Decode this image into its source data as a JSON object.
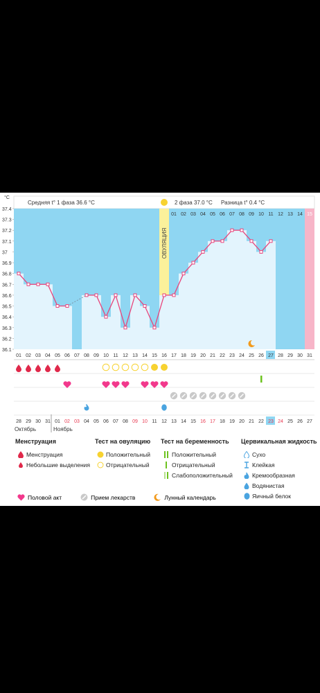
{
  "chart_data": {
    "type": "line",
    "unit": "°C",
    "ylim": [
      36.1,
      37.4
    ],
    "y_ticks": [
      "37.4",
      "37.3",
      "37.2",
      "37.1",
      "37",
      "36.9",
      "36.8",
      "36.7",
      "36.6",
      "36.5",
      "36.4",
      "36.3",
      "36.2",
      "36.1"
    ],
    "cycle_days": [
      "01",
      "02",
      "03",
      "04",
      "05",
      "06",
      "07",
      "08",
      "09",
      "10",
      "11",
      "12",
      "13",
      "14",
      "15",
      "16",
      "17",
      "18",
      "19",
      "20",
      "21",
      "22",
      "23",
      "24",
      "25",
      "26",
      "27",
      "28",
      "29",
      "30",
      "31"
    ],
    "phase2_days": [
      "01",
      "02",
      "03",
      "04",
      "05",
      "06",
      "07",
      "08",
      "09",
      "10",
      "11",
      "12",
      "13",
      "14",
      "15"
    ],
    "temperatures": [
      36.8,
      36.7,
      36.7,
      36.7,
      36.5,
      36.5,
      null,
      36.6,
      36.6,
      36.4,
      36.6,
      36.3,
      36.6,
      36.5,
      36.3,
      36.6,
      36.6,
      36.8,
      36.9,
      37.0,
      37.1,
      37.1,
      37.2,
      37.2,
      37.1,
      37.0,
      37.1,
      null,
      null,
      null,
      null
    ],
    "ovulation_day_index": 15,
    "current_day_index": 26,
    "calendar_dates": [
      "28",
      "29",
      "30",
      "31",
      "01",
      "02",
      "03",
      "04",
      "05",
      "06",
      "07",
      "08",
      "09",
      "10",
      "11",
      "12",
      "13",
      "14",
      "15",
      "16",
      "17",
      "18",
      "19",
      "20",
      "21",
      "22",
      "23",
      "24",
      "25",
      "26",
      "27"
    ],
    "weekend_indices": [
      5,
      6,
      12,
      13,
      19,
      20,
      26,
      27
    ],
    "today_date_index": 26,
    "months": [
      "Октябрь",
      "Ноябрь"
    ],
    "menstruation_days": [
      0,
      1,
      2,
      3,
      4
    ],
    "ovulation_positive_days": [
      14,
      15
    ],
    "ovulation_negative_days": [
      9,
      10,
      11,
      12,
      13
    ],
    "pregnancy_negative_days": [
      25
    ],
    "intercourse_days": [
      5,
      9,
      10,
      11,
      13,
      14,
      15
    ],
    "medicine_days": [
      16,
      17,
      18,
      19,
      20,
      21,
      22,
      23
    ],
    "fluid_creamy_days": [
      7
    ],
    "fluid_eggwhite_days": [
      15
    ],
    "lunar_day": 24
  },
  "header": {
    "avg1": "Средняя t° 1 фаза 36.6 °C",
    "avg2": "2 фаза 37.0 °C",
    "diff": "Разница t° 0.4 °C",
    "ovulation_label": "ОВУЛЯЦИЯ"
  },
  "legend": {
    "menstruation": {
      "title": "Менструация",
      "items": [
        "Менструация",
        "Небольшие выделения"
      ]
    },
    "ovulation_test": {
      "title": "Тест на овуляцию",
      "items": [
        "Положительный",
        "Отрицательный"
      ]
    },
    "pregnancy_test": {
      "title": "Тест на беременность",
      "items": [
        "Положительный",
        "Отрицательный",
        "Слабоположительный"
      ]
    },
    "cervical": {
      "title": "Цервикальная жидкость",
      "items": [
        "Сухо",
        "Клейкая",
        "Кремообразная",
        "Водянистая",
        "Яичный белок"
      ]
    },
    "bottom": [
      "Половой акт",
      "Прием лекарств",
      "Лунный календарь"
    ]
  },
  "colors": {
    "phase1": "#8fd6f2",
    "phase2": "#8fd6f2",
    "column": "#e3f4fd",
    "ovulation": "#fbf19b",
    "period": "#f7b5c8",
    "line": "#e8457c",
    "today": "#8fd6f2",
    "weekend": "#e8374f",
    "blood": "#e0284a",
    "yellow": "#f7d230",
    "heart": "#f2388c",
    "green": "#6cc21e",
    "blue_drop": "#4aa4e0"
  }
}
